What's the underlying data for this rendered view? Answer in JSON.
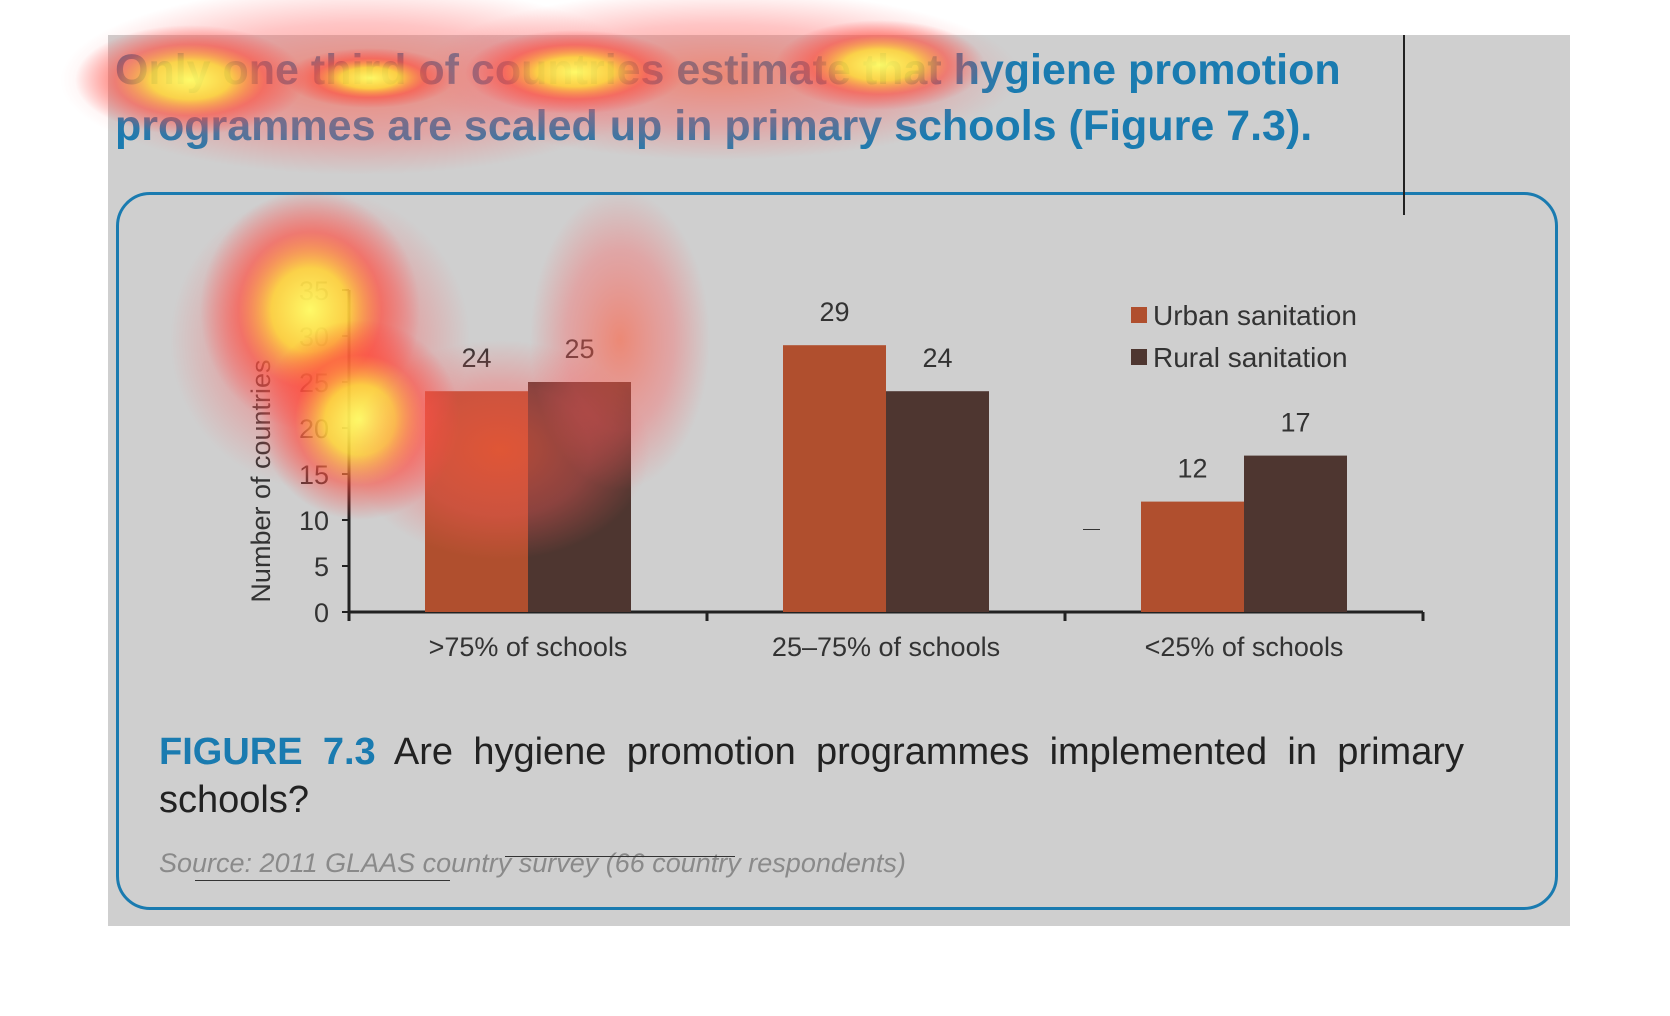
{
  "headline": {
    "text": "Only one third of countries estimate that hygiene promotion programmes are scaled up in primary schools (Figure 7.3)."
  },
  "chart_data": {
    "type": "bar",
    "categories": [
      ">75% of schools",
      "25–75% of schools",
      "<25% of schools"
    ],
    "series": [
      {
        "name": "Urban sanitation",
        "values": [
          24,
          29,
          12
        ],
        "color": "#b04f2e"
      },
      {
        "name": "Rural sanitation",
        "values": [
          25,
          24,
          17
        ],
        "color": "#4e3630"
      }
    ],
    "ylabel": "Number of countries",
    "xlabel": "",
    "ylim": [
      0,
      35
    ],
    "yticks": [
      0,
      5,
      10,
      15,
      20,
      25,
      30,
      35
    ],
    "legend_position": "top-right",
    "grid": false
  },
  "caption": {
    "figure_number": "FIGURE 7.3",
    "text": "Are hygiene promotion programmes implemented in primary schools?"
  },
  "source": "Source: 2011 GLAAS country survey (66 country respondents)",
  "colors": {
    "accent": "#1a7bb0",
    "panel": "#cfcfcf"
  }
}
